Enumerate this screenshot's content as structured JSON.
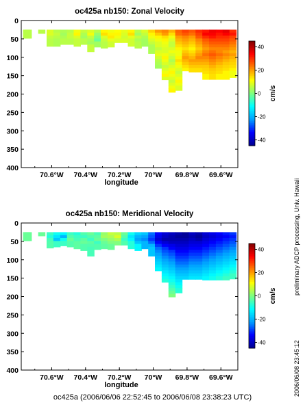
{
  "footer": "oc425a (2006/06/06 22:52:45 to 2006/06/08 23:38:23 UTC)",
  "credit": "preliminary ADCP processing,   Univ. Hawaii",
  "stamp": "2006/06/08 23:45:12",
  "chart_data": [
    {
      "type": "heatmap",
      "title": "oc425a nb150: Zonal Velocity",
      "xlabel": "longitude",
      "ylabel": "",
      "xlim": [
        -70.78,
        -69.5
      ],
      "ylim": [
        400,
        0
      ],
      "xticks": [
        -70.6,
        -70.4,
        -70.2,
        -70.0,
        -69.8,
        -69.6
      ],
      "xtick_labels": [
        "70.6°W",
        "70.4°W",
        "70.2°W",
        "70°W",
        "69.8°W",
        "69.6°W"
      ],
      "yticks": [
        0,
        50,
        100,
        150,
        200,
        250,
        300,
        350,
        400
      ],
      "colorbar": {
        "label": "cm/s",
        "range": [
          -45,
          45
        ],
        "ticks": [
          40,
          20,
          0,
          -20,
          -40
        ]
      },
      "colorscale": [
        "#00008f",
        "#0000ff",
        "#00a0ff",
        "#00ffff",
        "#80ff80",
        "#ffff00",
        "#ff8000",
        "#ff0000",
        "#800000"
      ],
      "depth_top": 25,
      "bin_size": 8,
      "columns": [
        {
          "lon": -70.75,
          "bottom": 48,
          "values": [
            5
          ]
        },
        {
          "lon": -70.74,
          "bottom": 48,
          "values": [
            5
          ]
        },
        {
          "lon": -70.66,
          "bottom": 35,
          "values": [
            5
          ]
        },
        {
          "lon": -70.61,
          "bottom": 70,
          "values": [
            8,
            8,
            6,
            5
          ]
        },
        {
          "lon": -70.57,
          "bottom": 70,
          "values": [
            5,
            6,
            5,
            4
          ]
        },
        {
          "lon": -70.53,
          "bottom": 65,
          "values": [
            4,
            3,
            4,
            5
          ]
        },
        {
          "lon": -70.49,
          "bottom": 65,
          "values": [
            5,
            6,
            6,
            5
          ]
        },
        {
          "lon": -70.45,
          "bottom": 70,
          "values": [
            10,
            12,
            8,
            6
          ]
        },
        {
          "lon": -70.41,
          "bottom": 65,
          "values": [
            6,
            4,
            3,
            5
          ]
        },
        {
          "lon": -70.37,
          "bottom": 85,
          "values": [
            8,
            10,
            6,
            4,
            3,
            6
          ]
        },
        {
          "lon": -70.33,
          "bottom": 72,
          "values": [
            5,
            2,
            0,
            -2,
            3
          ]
        },
        {
          "lon": -70.29,
          "bottom": 75,
          "values": [
            12,
            14,
            8,
            6,
            5
          ]
        },
        {
          "lon": -70.25,
          "bottom": 72,
          "values": [
            10,
            12,
            13,
            9,
            7
          ]
        },
        {
          "lon": -70.21,
          "bottom": 60,
          "values": [
            11,
            12,
            10,
            8
          ]
        },
        {
          "lon": -70.17,
          "bottom": 60,
          "values": [
            9,
            8,
            7,
            8
          ]
        },
        {
          "lon": -70.13,
          "bottom": 70,
          "values": [
            12,
            14,
            9,
            7
          ]
        },
        {
          "lon": -70.09,
          "bottom": 75,
          "values": [
            5,
            3,
            6,
            4,
            5
          ]
        },
        {
          "lon": -70.05,
          "bottom": 70,
          "values": [
            8,
            6,
            4,
            3
          ]
        },
        {
          "lon": -70.01,
          "bottom": 90,
          "values": [
            15,
            12,
            10,
            8,
            6,
            4
          ]
        },
        {
          "lon": -69.97,
          "bottom": 130,
          "values": [
            20,
            16,
            12,
            10,
            8,
            8,
            6,
            8,
            9,
            7,
            5,
            4,
            3
          ]
        },
        {
          "lon": -69.93,
          "bottom": 160,
          "values": [
            22,
            20,
            14,
            12,
            10,
            9,
            8,
            8,
            10,
            12,
            10,
            8,
            6,
            8,
            10,
            12,
            8
          ]
        },
        {
          "lon": -69.89,
          "bottom": 195,
          "values": [
            18,
            14,
            10,
            8,
            6,
            6,
            8,
            10,
            8,
            6,
            4,
            6,
            8,
            10,
            12,
            10,
            8,
            6,
            8,
            10,
            12
          ]
        },
        {
          "lon": -69.85,
          "bottom": 190,
          "values": [
            25,
            24,
            20,
            18,
            16,
            14,
            12,
            10,
            10,
            12,
            14,
            12,
            10,
            8,
            6,
            8,
            10,
            12,
            10,
            8
          ]
        },
        {
          "lon": -69.81,
          "bottom": 135,
          "values": [
            28,
            26,
            22,
            20,
            18,
            16,
            14,
            16,
            18,
            20,
            18,
            16,
            14,
            12
          ]
        },
        {
          "lon": -69.77,
          "bottom": 140,
          "values": [
            26,
            24,
            20,
            18,
            16,
            14,
            12,
            14,
            16,
            18,
            20,
            18,
            16,
            14
          ]
        },
        {
          "lon": -69.73,
          "bottom": 140,
          "values": [
            30,
            28,
            26,
            22,
            20,
            18,
            16,
            18,
            20,
            22,
            20,
            18,
            16,
            14
          ]
        },
        {
          "lon": -69.69,
          "bottom": 160,
          "values": [
            32,
            34,
            30,
            26,
            24,
            22,
            20,
            22,
            24,
            22,
            20,
            18,
            16,
            15,
            14,
            12
          ]
        },
        {
          "lon": -69.65,
          "bottom": 160,
          "values": [
            35,
            34,
            32,
            28,
            26,
            24,
            22,
            24,
            26,
            24,
            22,
            20,
            18,
            16,
            15,
            14
          ]
        },
        {
          "lon": -69.61,
          "bottom": 160,
          "values": [
            34,
            32,
            30,
            28,
            26,
            24,
            22,
            22,
            24,
            22,
            20,
            18,
            16,
            15,
            14,
            12
          ]
        },
        {
          "lon": -69.57,
          "bottom": 160,
          "values": [
            36,
            34,
            30,
            28,
            26,
            24,
            22,
            20,
            22,
            20,
            18,
            16,
            15,
            14,
            12,
            12
          ]
        },
        {
          "lon": -69.53,
          "bottom": 155,
          "values": [
            30,
            32,
            28,
            26,
            24,
            22,
            20,
            18,
            20,
            18,
            16,
            15,
            14,
            12,
            10
          ]
        }
      ]
    },
    {
      "type": "heatmap",
      "title": "oc425a nb150: Meridional Velocity",
      "xlabel": "longitude",
      "ylabel": "",
      "xlim": [
        -70.78,
        -69.5
      ],
      "ylim": [
        400,
        0
      ],
      "xticks": [
        -70.6,
        -70.4,
        -70.2,
        -70.0,
        -69.8,
        -69.6
      ],
      "xtick_labels": [
        "70.6°W",
        "70.4°W",
        "70.2°W",
        "70°W",
        "69.8°W",
        "69.6°W"
      ],
      "yticks": [
        0,
        50,
        100,
        150,
        200,
        250,
        300,
        350,
        400
      ],
      "colorbar": {
        "label": "cm/s",
        "range": [
          -45,
          45
        ],
        "ticks": [
          40,
          20,
          0,
          -20,
          -40
        ]
      },
      "colorscale": [
        "#00008f",
        "#0000ff",
        "#00a0ff",
        "#00ffff",
        "#80ff80",
        "#ffff00",
        "#ff8000",
        "#ff0000",
        "#800000"
      ],
      "depth_top": 25,
      "bin_size": 8,
      "columns": [
        {
          "lon": -70.75,
          "bottom": 48,
          "values": [
            -2
          ]
        },
        {
          "lon": -70.74,
          "bottom": 48,
          "values": [
            -2
          ]
        },
        {
          "lon": -70.66,
          "bottom": 35,
          "values": [
            -2
          ]
        },
        {
          "lon": -70.61,
          "bottom": 68,
          "values": [
            -6,
            -8,
            -5,
            -4
          ]
        },
        {
          "lon": -70.57,
          "bottom": 65,
          "values": [
            -10,
            -14,
            -18,
            -6
          ]
        },
        {
          "lon": -70.53,
          "bottom": 62,
          "values": [
            -12,
            -20,
            -10,
            -6
          ]
        },
        {
          "lon": -70.49,
          "bottom": 65,
          "values": [
            -6,
            -4,
            -2,
            -4
          ]
        },
        {
          "lon": -70.45,
          "bottom": 70,
          "values": [
            -8,
            -6,
            -5,
            -3
          ]
        },
        {
          "lon": -70.41,
          "bottom": 75,
          "values": [
            -4,
            -6,
            -3,
            -2,
            -4
          ]
        },
        {
          "lon": -70.37,
          "bottom": 90,
          "values": [
            -2,
            -4,
            -6,
            -3,
            -4,
            -5
          ]
        },
        {
          "lon": -70.33,
          "bottom": 72,
          "values": [
            -5,
            -3,
            -2,
            -6,
            -4
          ]
        },
        {
          "lon": -70.29,
          "bottom": 70,
          "values": [
            2,
            3,
            0,
            -2,
            -3
          ]
        },
        {
          "lon": -70.25,
          "bottom": 72,
          "values": [
            6,
            4,
            2,
            0,
            -2
          ]
        },
        {
          "lon": -70.21,
          "bottom": 60,
          "values": [
            5,
            8,
            4,
            0
          ]
        },
        {
          "lon": -70.17,
          "bottom": 60,
          "values": [
            -2,
            -4,
            -6,
            -4
          ]
        },
        {
          "lon": -70.13,
          "bottom": 70,
          "values": [
            -10,
            -14,
            -12,
            -8
          ]
        },
        {
          "lon": -70.09,
          "bottom": 75,
          "values": [
            -16,
            -20,
            -22,
            -18,
            -12
          ]
        },
        {
          "lon": -70.05,
          "bottom": 70,
          "values": [
            -18,
            -22,
            -24,
            -20
          ]
        },
        {
          "lon": -70.01,
          "bottom": 90,
          "values": [
            -26,
            -28,
            -30,
            -26,
            -20,
            -18
          ]
        },
        {
          "lon": -69.97,
          "bottom": 130,
          "values": [
            -34,
            -36,
            -38,
            -34,
            -30,
            -26,
            -24,
            -22,
            -20,
            -18,
            -16,
            -14,
            -12
          ]
        },
        {
          "lon": -69.93,
          "bottom": 160,
          "values": [
            -38,
            -40,
            -42,
            -38,
            -34,
            -30,
            -28,
            -26,
            -24,
            -22,
            -20,
            -18,
            -16,
            -14,
            -12,
            -10,
            -8
          ]
        },
        {
          "lon": -69.89,
          "bottom": 200,
          "values": [
            -40,
            -42,
            -42,
            -40,
            -36,
            -34,
            -30,
            -28,
            -26,
            -24,
            -22,
            -20,
            -18,
            -16,
            -14,
            -12,
            -10,
            -8,
            -6,
            -4,
            -2,
            0
          ]
        },
        {
          "lon": -69.85,
          "bottom": 190,
          "values": [
            -42,
            -44,
            -42,
            -40,
            -38,
            -36,
            -34,
            -32,
            -30,
            -28,
            -26,
            -24,
            -22,
            -20,
            -18,
            -16,
            -14,
            -12,
            -10,
            -8
          ]
        },
        {
          "lon": -69.81,
          "bottom": 150,
          "values": [
            -44,
            -44,
            -42,
            -40,
            -38,
            -36,
            -34,
            -32,
            -30,
            -28,
            -26,
            -24,
            -22,
            -20,
            -18,
            -16
          ]
        },
        {
          "lon": -69.77,
          "bottom": 150,
          "values": [
            -40,
            -42,
            -40,
            -38,
            -36,
            -34,
            -32,
            -30,
            -28,
            -26,
            -24,
            -22,
            -20,
            -18,
            -16,
            -14
          ]
        },
        {
          "lon": -69.73,
          "bottom": 150,
          "values": [
            -42,
            -44,
            -42,
            -38,
            -36,
            -34,
            -32,
            -30,
            -28,
            -26,
            -24,
            -22,
            -20,
            -18,
            -16,
            -14
          ]
        },
        {
          "lon": -69.69,
          "bottom": 155,
          "values": [
            -38,
            -40,
            -38,
            -36,
            -34,
            -32,
            -30,
            -28,
            -26,
            -24,
            -22,
            -20,
            -18,
            -16,
            -14,
            -12
          ]
        },
        {
          "lon": -69.65,
          "bottom": 155,
          "values": [
            -36,
            -38,
            -36,
            -34,
            -32,
            -30,
            -28,
            -26,
            -24,
            -22,
            -20,
            -18,
            -16,
            -14,
            -12,
            -10
          ]
        },
        {
          "lon": -69.61,
          "bottom": 155,
          "values": [
            -34,
            -36,
            -34,
            -32,
            -30,
            -28,
            -26,
            -24,
            -22,
            -20,
            -18,
            -16,
            -14,
            -12,
            -10,
            -8
          ]
        },
        {
          "lon": -69.57,
          "bottom": 155,
          "values": [
            -32,
            -34,
            -32,
            -30,
            -28,
            -26,
            -24,
            -22,
            -20,
            -18,
            -16,
            -14,
            -12,
            -10,
            -8,
            -6
          ]
        },
        {
          "lon": -69.53,
          "bottom": 152,
          "values": [
            -30,
            -32,
            -30,
            -28,
            -26,
            -24,
            -22,
            -20,
            -18,
            -16,
            -14,
            -12,
            -10,
            -8,
            -6
          ]
        }
      ]
    }
  ]
}
